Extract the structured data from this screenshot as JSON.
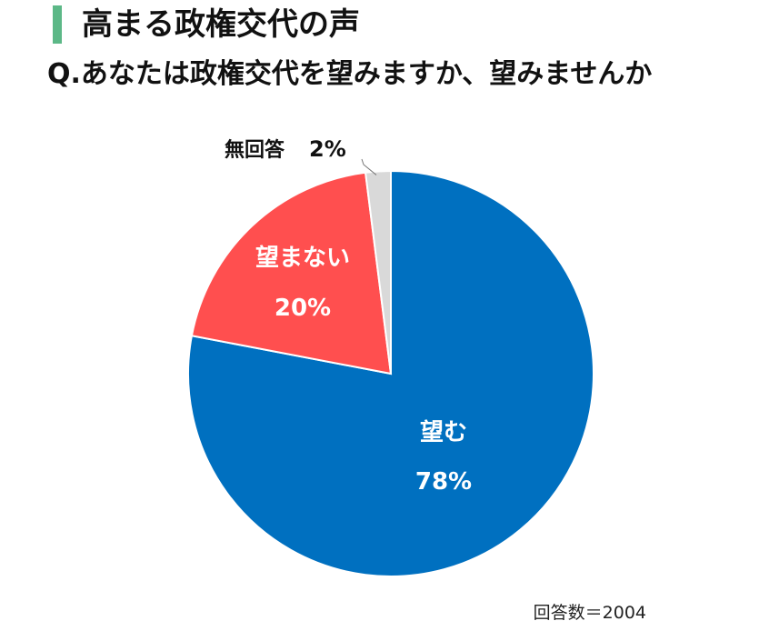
{
  "title": "高まる政権交代の声",
  "question": "Q.あなたは政権交代を望みますか、望みませんか",
  "footnote": "回答数＝2004",
  "colors": {
    "accent_bar": "#5cb887",
    "nozomu": "#0070c0",
    "nozomanai": "#ff4f4f",
    "mukaito": "#d9d9d9"
  },
  "chart_data": {
    "type": "pie",
    "title": "Q.あなたは政権交代を望みますか、望みませんか",
    "total_responses": 2004,
    "series": [
      {
        "name": "回答",
        "values": [
          78,
          20,
          2
        ]
      }
    ],
    "categories": [
      "望む",
      "望まない",
      "無回答"
    ],
    "slices": [
      {
        "label": "望む",
        "value": 78,
        "value_label": "78%",
        "color": "#0070c0"
      },
      {
        "label": "望まない",
        "value": 20,
        "value_label": "20%",
        "color": "#ff4f4f"
      },
      {
        "label": "無回答",
        "value": 2,
        "value_label": "2%",
        "color": "#d9d9d9"
      }
    ],
    "start": "12 o'clock",
    "direction": "clockwise",
    "legend": "none"
  }
}
